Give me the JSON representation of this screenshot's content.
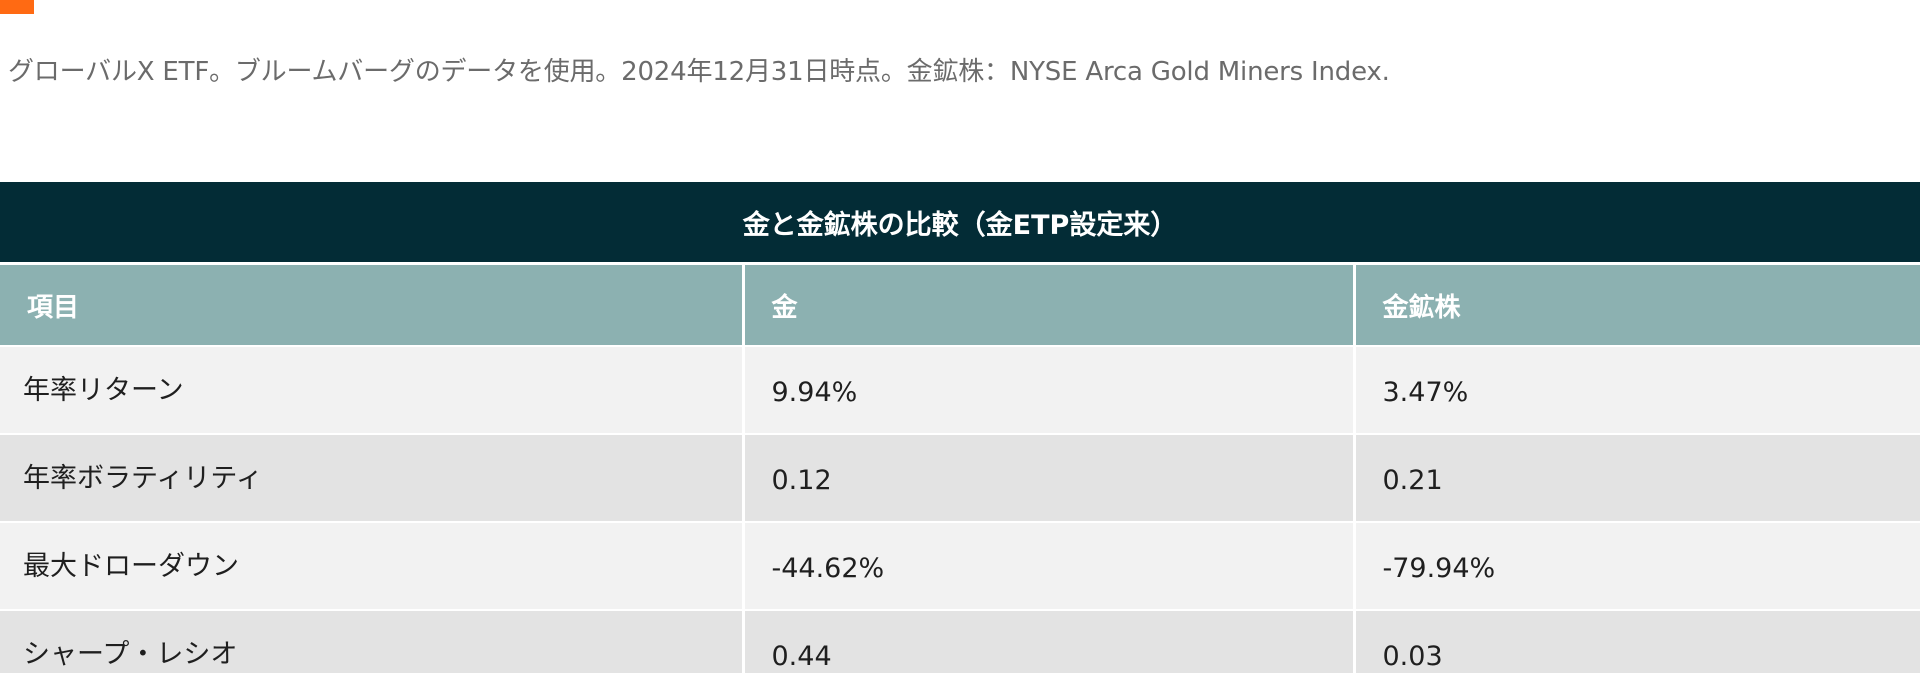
{
  "source_note": "グローバルX ETF。ブルームバーグのデータを使用。2024年12月31日時点。金鉱株：NYSE Arca Gold Miners Index.",
  "colors": {
    "accent": "#ff6a13",
    "title_bar": "#032c36",
    "header_bar": "#8cb1b1",
    "row_light": "#f2f2f2",
    "row_dark": "#e3e3e3"
  },
  "table": {
    "title": "金と金鉱株の比較（金ETP設定来）",
    "headers": [
      "項目",
      "金",
      "金鉱株"
    ],
    "rows": [
      {
        "metric": "年率リターン",
        "gold": "9.94%",
        "miners": "3.47%"
      },
      {
        "metric": "年率ボラティリティ",
        "gold": "0.12",
        "miners": "0.21"
      },
      {
        "metric": "最大ドローダウン",
        "gold": "-44.62%",
        "miners": "-79.94%"
      },
      {
        "metric": "シャープ・レシオ",
        "gold": "0.44",
        "miners": "0.03"
      }
    ]
  }
}
